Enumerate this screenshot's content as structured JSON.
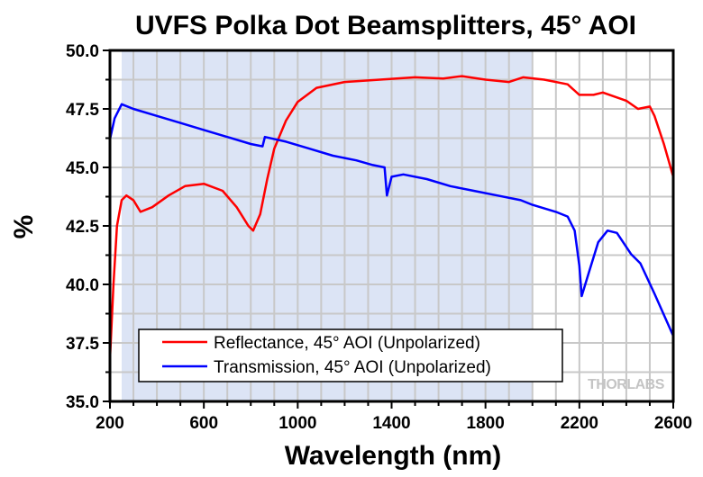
{
  "chart_data": {
    "type": "line",
    "title": "UVFS Polka Dot Beamsplitters, 45° AOI",
    "xlabel": "Wavelength (nm)",
    "ylabel": "%",
    "xlim": [
      200,
      2600
    ],
    "ylim": [
      35.0,
      50.0
    ],
    "xticks": [
      200,
      600,
      1000,
      1400,
      1800,
      2200,
      2600
    ],
    "xtick_labels": [
      "200",
      "600",
      "1000",
      "1400",
      "1800",
      "2200",
      "2600"
    ],
    "xminor_step": 100,
    "yticks": [
      35.0,
      37.5,
      40.0,
      42.5,
      45.0,
      47.5,
      50.0
    ],
    "ytick_labels": [
      "35.0",
      "37.5",
      "40.0",
      "42.5",
      "45.0",
      "47.5",
      "50.0"
    ],
    "yminor_step": 1.25,
    "grid": true,
    "shaded_region": {
      "x_range": [
        250,
        2000
      ],
      "color": "#dce4f5"
    },
    "legend_position": "bottom-left",
    "watermark": "THORLABS",
    "series": [
      {
        "name": "Reflectance, 45° AOI (Unpolarized)",
        "color": "#ff0000",
        "x": [
          200,
          215,
          230,
          250,
          270,
          300,
          330,
          380,
          450,
          520,
          600,
          680,
          740,
          790,
          810,
          840,
          870,
          900,
          950,
          1000,
          1080,
          1200,
          1350,
          1500,
          1620,
          1700,
          1800,
          1900,
          1960,
          2050,
          2150,
          2200,
          2260,
          2300,
          2400,
          2450,
          2500,
          2520,
          2560,
          2600
        ],
        "y": [
          36.8,
          40.0,
          42.5,
          43.6,
          43.8,
          43.6,
          43.1,
          43.3,
          43.8,
          44.2,
          44.3,
          44.0,
          43.3,
          42.5,
          42.3,
          43.0,
          44.5,
          45.8,
          47.0,
          47.8,
          48.4,
          48.65,
          48.75,
          48.85,
          48.8,
          48.9,
          48.75,
          48.65,
          48.85,
          48.75,
          48.55,
          48.1,
          48.1,
          48.2,
          47.85,
          47.5,
          47.6,
          47.2,
          46.0,
          44.6
        ]
      },
      {
        "name": "Transmission, 45° AOI (Unpolarized)",
        "color": "#0000ff",
        "x": [
          200,
          220,
          250,
          300,
          400,
          500,
          600,
          700,
          800,
          850,
          860,
          950,
          1050,
          1150,
          1250,
          1320,
          1370,
          1380,
          1400,
          1450,
          1550,
          1650,
          1750,
          1850,
          1950,
          2000,
          2100,
          2150,
          2180,
          2200,
          2210,
          2240,
          2280,
          2320,
          2360,
          2420,
          2460,
          2520,
          2600
        ],
        "y": [
          46.2,
          47.1,
          47.7,
          47.5,
          47.2,
          46.9,
          46.6,
          46.3,
          46.0,
          45.9,
          46.3,
          46.1,
          45.8,
          45.5,
          45.3,
          45.1,
          45.0,
          43.8,
          44.6,
          44.7,
          44.5,
          44.2,
          44.0,
          43.8,
          43.6,
          43.4,
          43.1,
          42.9,
          42.3,
          40.8,
          39.5,
          40.5,
          41.8,
          42.3,
          42.2,
          41.3,
          40.9,
          39.6,
          37.8
        ]
      }
    ]
  }
}
